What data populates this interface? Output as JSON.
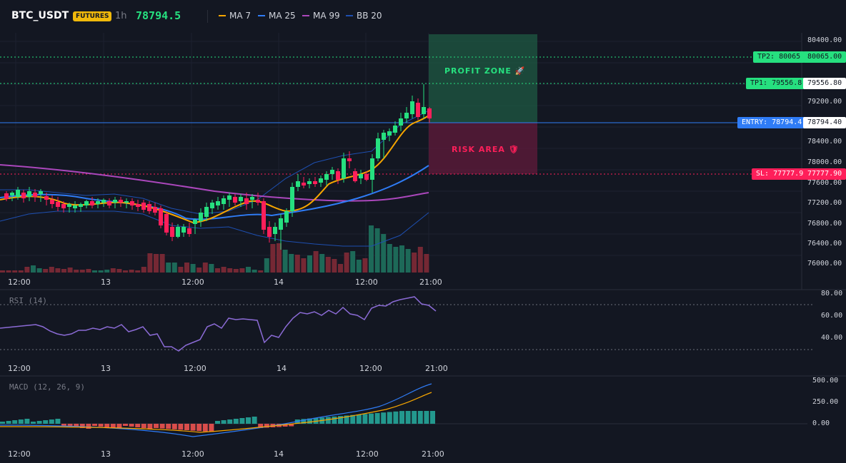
{
  "header": {
    "symbol": "BTC_USDT",
    "badge": "FUTURES",
    "timeframe": "1h",
    "price": "78794.5",
    "indicators": [
      {
        "label": "MA 7",
        "color": "#f7a600"
      },
      {
        "label": "MA 25",
        "color": "#2f7cf6"
      },
      {
        "label": "MA 99",
        "color": "#ab47bc"
      },
      {
        "label": "BB 20",
        "color": "#1e4fb0"
      }
    ]
  },
  "zones": {
    "profit_label": "PROFIT ZONE 🚀",
    "risk_label": "RISK AREA 🛡"
  },
  "levels": {
    "tp2": {
      "tag": "TP2: 80065",
      "axis": "80065.00",
      "color": "#26e07f"
    },
    "tp1": {
      "tag": "TP1: 79556.8",
      "axis": "79556.80",
      "color": "#26e07f"
    },
    "entry": {
      "tag": "ENTRY: 78794.4",
      "axis": "78794.40",
      "color": "#2f7cf6"
    },
    "sl": {
      "tag": "SL: 77777.9",
      "axis": "77777.90",
      "color": "#ff1744"
    }
  },
  "price_axis": [
    "80400.00",
    "79200.00",
    "78800.00",
    "78400.00",
    "78000.00",
    "77600.00",
    "77200.00",
    "76800.00",
    "76400.00",
    "76000.00"
  ],
  "time_axis": [
    "12:00",
    "13",
    "12:00",
    "14",
    "12:00",
    "21:00"
  ],
  "rsi": {
    "label": "RSI (14)",
    "axis": [
      "80.00",
      "60.00",
      "40.00"
    ]
  },
  "macd": {
    "label": "MACD (12, 26, 9)",
    "axis": [
      "500.00",
      "250.00",
      "0.00"
    ]
  },
  "colors": {
    "up": "#26e07f",
    "down": "#ff1f5a",
    "background": "#131722"
  }
}
